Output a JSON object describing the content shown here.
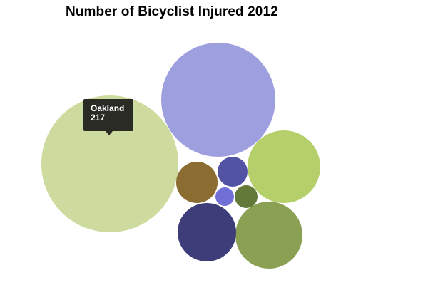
{
  "chart_data": {
    "type": "bubble",
    "title": "Number of Bicyclist Injured 2012",
    "series": [
      {
        "name": "",
        "values": [
          217,
          152,
          62,
          58,
          40,
          32,
          28,
          18,
          10,
          6
        ],
        "colors": [
          "#cddc9e",
          "#9d9fdf",
          "#8aa154",
          "#b5cf6b",
          "#3d3d7a",
          "#8c6d31",
          "#5254a3",
          "#637939",
          "#7070d6",
          "#cedb9c"
        ]
      }
    ],
    "tooltip": {
      "label": "Oakland",
      "value": "217"
    }
  }
}
